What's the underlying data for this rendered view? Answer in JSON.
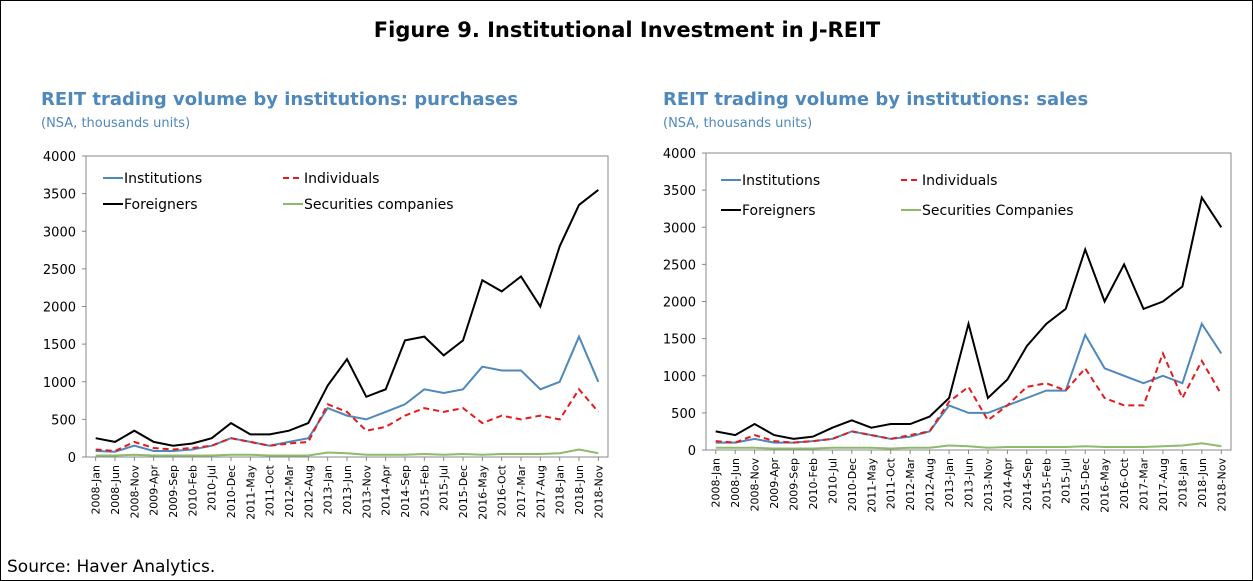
{
  "title": "Figure 9. Institutional Investment in J-REIT",
  "source": "Source: Haver Analytics.",
  "chart_data": [
    {
      "type": "line",
      "title": "REIT trading volume by institutions: purchases",
      "subtitle": "(NSA, thousands units)",
      "categories": [
        "2008-Jan",
        "2008-Jun",
        "2008-Nov",
        "2009-Apr",
        "2009-Sep",
        "2010-Feb",
        "2010-Jul",
        "2010-Dec",
        "2011-May",
        "2011-Oct",
        "2012-Mar",
        "2012-Aug",
        "2013-Jan",
        "2013-Jun",
        "2013-Nov",
        "2014-Apr",
        "2014-Sep",
        "2015-Feb",
        "2015-Jul",
        "2015-Dec",
        "2016-May",
        "2016-Oct",
        "2017-Mar",
        "2017-Aug",
        "2018-Jan",
        "2018-Jun",
        "2018-Nov"
      ],
      "ylim": [
        0,
        4000
      ],
      "yticks": [
        0,
        500,
        1000,
        1500,
        2000,
        2500,
        3000,
        3500,
        4000
      ],
      "series": [
        {
          "name": "Institutions",
          "color": "#4f88bb",
          "dash": false,
          "values": [
            80,
            70,
            150,
            80,
            80,
            100,
            150,
            250,
            200,
            150,
            200,
            250,
            650,
            550,
            500,
            600,
            700,
            900,
            850,
            900,
            1200,
            1150,
            1150,
            900,
            1000,
            1600,
            1000
          ]
        },
        {
          "name": "Individuals",
          "color": "#e41a1c",
          "dash": true,
          "values": [
            100,
            80,
            200,
            120,
            100,
            120,
            150,
            250,
            200,
            150,
            180,
            200,
            700,
            600,
            350,
            400,
            550,
            650,
            600,
            650,
            450,
            550,
            500,
            550,
            500,
            900,
            600
          ]
        },
        {
          "name": "Foreigners",
          "color": "#000000",
          "dash": false,
          "values": [
            250,
            200,
            350,
            200,
            150,
            180,
            250,
            450,
            300,
            300,
            350,
            450,
            950,
            1300,
            800,
            900,
            1550,
            1600,
            1350,
            1550,
            2350,
            2200,
            2400,
            2000,
            2800,
            3350,
            3550
          ]
        },
        {
          "name": "Securities companies",
          "color": "#8dbb6b",
          "dash": false,
          "values": [
            20,
            20,
            30,
            20,
            20,
            20,
            20,
            30,
            30,
            20,
            20,
            20,
            60,
            50,
            30,
            30,
            30,
            40,
            30,
            40,
            30,
            40,
            40,
            40,
            50,
            100,
            50
          ]
        }
      ]
    },
    {
      "type": "line",
      "title": "REIT trading volume by institutions: sales",
      "subtitle": "(NSA, thousands units)",
      "categories": [
        "2008-Jan",
        "2008-Jun",
        "2008-Nov",
        "2009-Apr",
        "2009-Sep",
        "2010-Feb",
        "2010-Jul",
        "2010-Dec",
        "2011-May",
        "2011-Oct",
        "2012-Mar",
        "2012-Aug",
        "2013-Jan",
        "2013-Jun",
        "2013-Nov",
        "2014-Apr",
        "2014-Sep",
        "2015-Feb",
        "2015-Jul",
        "2015-Dec",
        "2016-May",
        "2016-Oct",
        "2017-Mar",
        "2017-Aug",
        "2018-Jan",
        "2018-Jun",
        "2018-Nov"
      ],
      "ylim": [
        0,
        4000
      ],
      "yticks": [
        0,
        500,
        1000,
        1500,
        2000,
        2500,
        3000,
        3500,
        4000
      ],
      "series": [
        {
          "name": "Institutions",
          "color": "#4f88bb",
          "dash": false,
          "values": [
            100,
            100,
            150,
            100,
            100,
            120,
            150,
            250,
            200,
            150,
            180,
            250,
            600,
            500,
            500,
            600,
            700,
            800,
            800,
            1550,
            1100,
            1000,
            900,
            1000,
            900,
            1700,
            1300
          ]
        },
        {
          "name": "Individuals",
          "color": "#e41a1c",
          "dash": true,
          "values": [
            120,
            100,
            200,
            120,
            100,
            120,
            150,
            250,
            200,
            150,
            200,
            250,
            650,
            850,
            400,
            600,
            850,
            900,
            800,
            1100,
            700,
            600,
            600,
            1300,
            700,
            1200,
            750
          ]
        },
        {
          "name": "Foreigners",
          "color": "#000000",
          "dash": false,
          "values": [
            250,
            200,
            350,
            200,
            150,
            180,
            300,
            400,
            300,
            350,
            350,
            450,
            700,
            1700,
            700,
            950,
            1400,
            1700,
            1900,
            2700,
            2000,
            2500,
            1900,
            2000,
            2200,
            3400,
            3000
          ]
        },
        {
          "name": "Securities Companies",
          "color": "#8dbb6b",
          "dash": false,
          "values": [
            30,
            30,
            30,
            20,
            20,
            20,
            30,
            30,
            30,
            20,
            30,
            30,
            60,
            50,
            30,
            40,
            40,
            40,
            40,
            50,
            40,
            40,
            40,
            50,
            60,
            90,
            50
          ]
        }
      ]
    }
  ]
}
